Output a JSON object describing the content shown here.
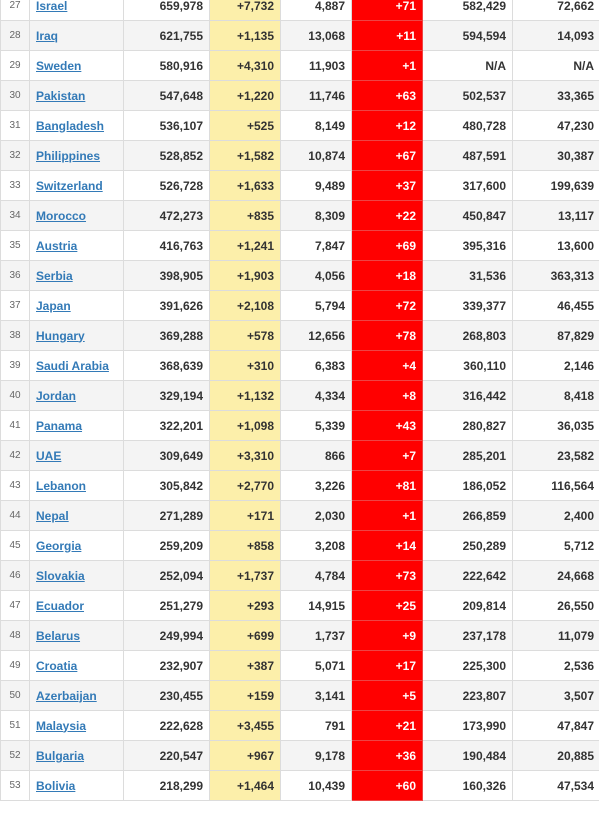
{
  "rows": [
    {
      "rank": "27",
      "country": "Israel",
      "total_cases": "659,978",
      "new_cases": "+7,732",
      "total_deaths": "4,887",
      "new_deaths": "+71",
      "total_recovered": "582,429",
      "active_cases": "72,662"
    },
    {
      "rank": "28",
      "country": "Iraq",
      "total_cases": "621,755",
      "new_cases": "+1,135",
      "total_deaths": "13,068",
      "new_deaths": "+11",
      "total_recovered": "594,594",
      "active_cases": "14,093"
    },
    {
      "rank": "29",
      "country": "Sweden",
      "total_cases": "580,916",
      "new_cases": "+4,310",
      "total_deaths": "11,903",
      "new_deaths": "+1",
      "total_recovered": "N/A",
      "active_cases": "N/A"
    },
    {
      "rank": "30",
      "country": "Pakistan",
      "total_cases": "547,648",
      "new_cases": "+1,220",
      "total_deaths": "11,746",
      "new_deaths": "+63",
      "total_recovered": "502,537",
      "active_cases": "33,365"
    },
    {
      "rank": "31",
      "country": "Bangladesh",
      "total_cases": "536,107",
      "new_cases": "+525",
      "total_deaths": "8,149",
      "new_deaths": "+12",
      "total_recovered": "480,728",
      "active_cases": "47,230"
    },
    {
      "rank": "32",
      "country": "Philippines",
      "total_cases": "528,852",
      "new_cases": "+1,582",
      "total_deaths": "10,874",
      "new_deaths": "+67",
      "total_recovered": "487,591",
      "active_cases": "30,387"
    },
    {
      "rank": "33",
      "country": "Switzerland",
      "total_cases": "526,728",
      "new_cases": "+1,633",
      "total_deaths": "9,489",
      "new_deaths": "+37",
      "total_recovered": "317,600",
      "active_cases": "199,639"
    },
    {
      "rank": "34",
      "country": "Morocco",
      "total_cases": "472,273",
      "new_cases": "+835",
      "total_deaths": "8,309",
      "new_deaths": "+22",
      "total_recovered": "450,847",
      "active_cases": "13,117"
    },
    {
      "rank": "35",
      "country": "Austria",
      "total_cases": "416,763",
      "new_cases": "+1,241",
      "total_deaths": "7,847",
      "new_deaths": "+69",
      "total_recovered": "395,316",
      "active_cases": "13,600"
    },
    {
      "rank": "36",
      "country": "Serbia",
      "total_cases": "398,905",
      "new_cases": "+1,903",
      "total_deaths": "4,056",
      "new_deaths": "+18",
      "total_recovered": "31,536",
      "active_cases": "363,313"
    },
    {
      "rank": "37",
      "country": "Japan",
      "total_cases": "391,626",
      "new_cases": "+2,108",
      "total_deaths": "5,794",
      "new_deaths": "+72",
      "total_recovered": "339,377",
      "active_cases": "46,455"
    },
    {
      "rank": "38",
      "country": "Hungary",
      "total_cases": "369,288",
      "new_cases": "+578",
      "total_deaths": "12,656",
      "new_deaths": "+78",
      "total_recovered": "268,803",
      "active_cases": "87,829"
    },
    {
      "rank": "39",
      "country": "Saudi Arabia",
      "total_cases": "368,639",
      "new_cases": "+310",
      "total_deaths": "6,383",
      "new_deaths": "+4",
      "total_recovered": "360,110",
      "active_cases": "2,146"
    },
    {
      "rank": "40",
      "country": "Jordan",
      "total_cases": "329,194",
      "new_cases": "+1,132",
      "total_deaths": "4,334",
      "new_deaths": "+8",
      "total_recovered": "316,442",
      "active_cases": "8,418"
    },
    {
      "rank": "41",
      "country": "Panama",
      "total_cases": "322,201",
      "new_cases": "+1,098",
      "total_deaths": "5,339",
      "new_deaths": "+43",
      "total_recovered": "280,827",
      "active_cases": "36,035"
    },
    {
      "rank": "42",
      "country": "UAE",
      "total_cases": "309,649",
      "new_cases": "+3,310",
      "total_deaths": "866",
      "new_deaths": "+7",
      "total_recovered": "285,201",
      "active_cases": "23,582"
    },
    {
      "rank": "43",
      "country": "Lebanon",
      "total_cases": "305,842",
      "new_cases": "+2,770",
      "total_deaths": "3,226",
      "new_deaths": "+81",
      "total_recovered": "186,052",
      "active_cases": "116,564"
    },
    {
      "rank": "44",
      "country": "Nepal",
      "total_cases": "271,289",
      "new_cases": "+171",
      "total_deaths": "2,030",
      "new_deaths": "+1",
      "total_recovered": "266,859",
      "active_cases": "2,400"
    },
    {
      "rank": "45",
      "country": "Georgia",
      "total_cases": "259,209",
      "new_cases": "+858",
      "total_deaths": "3,208",
      "new_deaths": "+14",
      "total_recovered": "250,289",
      "active_cases": "5,712"
    },
    {
      "rank": "46",
      "country": "Slovakia",
      "total_cases": "252,094",
      "new_cases": "+1,737",
      "total_deaths": "4,784",
      "new_deaths": "+73",
      "total_recovered": "222,642",
      "active_cases": "24,668"
    },
    {
      "rank": "47",
      "country": "Ecuador",
      "total_cases": "251,279",
      "new_cases": "+293",
      "total_deaths": "14,915",
      "new_deaths": "+25",
      "total_recovered": "209,814",
      "active_cases": "26,550"
    },
    {
      "rank": "48",
      "country": "Belarus",
      "total_cases": "249,994",
      "new_cases": "+699",
      "total_deaths": "1,737",
      "new_deaths": "+9",
      "total_recovered": "237,178",
      "active_cases": "11,079"
    },
    {
      "rank": "49",
      "country": "Croatia",
      "total_cases": "232,907",
      "new_cases": "+387",
      "total_deaths": "5,071",
      "new_deaths": "+17",
      "total_recovered": "225,300",
      "active_cases": "2,536"
    },
    {
      "rank": "50",
      "country": "Azerbaijan",
      "total_cases": "230,455",
      "new_cases": "+159",
      "total_deaths": "3,141",
      "new_deaths": "+5",
      "total_recovered": "223,807",
      "active_cases": "3,507"
    },
    {
      "rank": "51",
      "country": "Malaysia",
      "total_cases": "222,628",
      "new_cases": "+3,455",
      "total_deaths": "791",
      "new_deaths": "+21",
      "total_recovered": "173,990",
      "active_cases": "47,847"
    },
    {
      "rank": "52",
      "country": "Bulgaria",
      "total_cases": "220,547",
      "new_cases": "+967",
      "total_deaths": "9,178",
      "new_deaths": "+36",
      "total_recovered": "190,484",
      "active_cases": "20,885"
    },
    {
      "rank": "53",
      "country": "Bolivia",
      "total_cases": "218,299",
      "new_cases": "+1,464",
      "total_deaths": "10,439",
      "new_deaths": "+60",
      "total_recovered": "160,326",
      "active_cases": "47,534"
    }
  ],
  "colors": {
    "new_cases_bg": "#fcefaa",
    "new_deaths_bg": "#ff0000",
    "link": "#337ab7",
    "alt_row_bg": "#f4f4f4"
  }
}
